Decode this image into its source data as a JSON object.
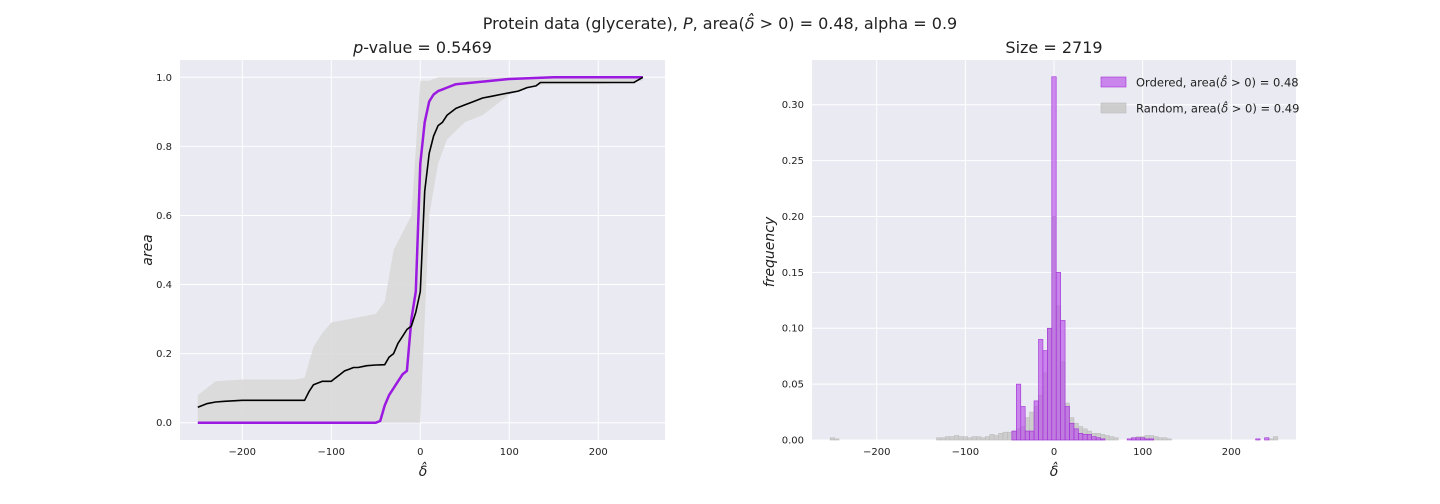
{
  "figure": {
    "suptitle": "Protein data (glycerate), P, area(δ̂ > 0) = 0.48, alpha = 0.9",
    "suptitle_parts": {
      "a": "Protein data (glycerate), ",
      "b": "P",
      "c": ", area(",
      "d": "δ̂",
      "e": " > 0) = 0.48, alpha = 0.9"
    }
  },
  "chart_data": [
    {
      "type": "line",
      "title": "p-value = 0.5469",
      "title_parts": {
        "italic": "p",
        "rest": "-value = 0.5469"
      },
      "xlabel": "δ̂",
      "ylabel": "area",
      "xlim": [
        -270,
        275
      ],
      "ylim": [
        -0.05,
        1.05
      ],
      "xticks": [
        -200,
        -100,
        0,
        100,
        200
      ],
      "xtick_labels": [
        "−200",
        "−100",
        "0",
        "100",
        "200"
      ],
      "yticks": [
        0.0,
        0.2,
        0.4,
        0.6,
        0.8,
        1.0
      ],
      "ytick_labels": [
        "0.0",
        "0.2",
        "0.4",
        "0.6",
        "0.8",
        "1.0"
      ],
      "grid": true,
      "colors": {
        "ordered": "#9b19e0",
        "mean": "#000000",
        "band": "#d9d9d9",
        "bg": "#eaeaf2",
        "grid": "#ffffff"
      },
      "series": [
        {
          "x": [
            -250,
            -50,
            -45,
            -40,
            -35,
            -30,
            -25,
            -20,
            -15,
            -10,
            -5,
            0,
            5,
            10,
            15,
            20,
            25,
            30,
            40,
            60,
            80,
            100,
            150,
            250
          ],
          "values": [
            0.0,
            0.0,
            0.005,
            0.05,
            0.08,
            0.1,
            0.12,
            0.14,
            0.15,
            0.3,
            0.38,
            0.75,
            0.87,
            0.93,
            0.95,
            0.96,
            0.965,
            0.97,
            0.98,
            0.985,
            0.99,
            0.995,
            1.0,
            1.0
          ]
        },
        {
          "x": [
            -250,
            -240,
            -230,
            -220,
            -200,
            -180,
            -160,
            -140,
            -135,
            -130,
            -125,
            -120,
            -110,
            -100,
            -95,
            -90,
            -85,
            -80,
            -75,
            -70,
            -60,
            -50,
            -40,
            -35,
            -30,
            -25,
            -20,
            -15,
            -10,
            -5,
            0,
            5,
            10,
            15,
            20,
            25,
            30,
            40,
            50,
            60,
            70,
            80,
            90,
            100,
            110,
            120,
            130,
            135,
            140,
            160,
            180,
            200,
            220,
            240,
            250
          ],
          "values": [
            0.045,
            0.055,
            0.06,
            0.062,
            0.065,
            0.065,
            0.065,
            0.065,
            0.065,
            0.065,
            0.09,
            0.11,
            0.12,
            0.12,
            0.13,
            0.14,
            0.15,
            0.155,
            0.16,
            0.16,
            0.165,
            0.167,
            0.168,
            0.19,
            0.2,
            0.23,
            0.25,
            0.27,
            0.28,
            0.32,
            0.38,
            0.67,
            0.78,
            0.83,
            0.86,
            0.87,
            0.89,
            0.91,
            0.92,
            0.93,
            0.94,
            0.945,
            0.95,
            0.955,
            0.96,
            0.97,
            0.975,
            0.985,
            0.985,
            0.985,
            0.985,
            0.985,
            0.985,
            0.985,
            1.0
          ]
        },
        {
          "x": [
            -250,
            -240,
            -230,
            -200,
            -160,
            -140,
            -130,
            -120,
            -110,
            -100,
            -80,
            -60,
            -50,
            -40,
            -30,
            -20,
            -10,
            0,
            10,
            20,
            30,
            50,
            70,
            100,
            120,
            140,
            200,
            250
          ],
          "lower": [
            0.0,
            0.0,
            0.0,
            0.0,
            0.0,
            0.0,
            0.0,
            0.0,
            0.0,
            0.0,
            0.0,
            0.0,
            0.0,
            0.0,
            0.0,
            0.0,
            0.0,
            0.0,
            0.6,
            0.75,
            0.82,
            0.87,
            0.89,
            0.95,
            0.97,
            0.98,
            0.98,
            0.99
          ],
          "upper": [
            0.08,
            0.1,
            0.12,
            0.125,
            0.125,
            0.125,
            0.13,
            0.22,
            0.26,
            0.29,
            0.3,
            0.31,
            0.315,
            0.35,
            0.5,
            0.55,
            0.6,
            0.99,
            0.99,
            1.0,
            1.0,
            1.0,
            1.0,
            1.0,
            1.0,
            1.0,
            1.0,
            1.0
          ]
        }
      ]
    },
    {
      "type": "bar",
      "title": "Size = 2719",
      "xlabel": "δ̂",
      "ylabel": "frequency",
      "xlim": [
        -273,
        273
      ],
      "ylim": [
        0,
        0.34
      ],
      "xticks": [
        -200,
        -100,
        0,
        100,
        200
      ],
      "xtick_labels": [
        "−200",
        "−100",
        "0",
        "100",
        "200"
      ],
      "yticks": [
        0.0,
        0.05,
        0.1,
        0.15,
        0.2,
        0.25,
        0.3
      ],
      "ytick_labels": [
        "0.00",
        "0.05",
        "0.10",
        "0.15",
        "0.20",
        "0.25",
        "0.30"
      ],
      "grid": true,
      "legend_position": "top-right",
      "bin_width": 5,
      "colors": {
        "ordered": "#b94ee8",
        "random": "#c8c8c8",
        "bg": "#eaeaf2",
        "grid": "#ffffff"
      },
      "series": [
        {
          "name": "Ordered, area(δ̂ > 0) = 0.48",
          "name_parts": {
            "a": "Ordered, area(",
            "b": "δ̂",
            "c": " > 0) = 0.48"
          },
          "x": [
            -45,
            -40,
            -35,
            -30,
            -25,
            -20,
            -15,
            -10,
            -5,
            0,
            5,
            10,
            15,
            20,
            25,
            30,
            35,
            40,
            45,
            50,
            55,
            85,
            90,
            95,
            100,
            105,
            110,
            230,
            240
          ],
          "values": [
            0.008,
            0.05,
            0.03,
            0.008,
            0.008,
            0.035,
            0.09,
            0.08,
            0.1,
            0.325,
            0.15,
            0.107,
            0.03,
            0.015,
            0.01,
            0.006,
            0.005,
            0.005,
            0.003,
            0.002,
            0.001,
            0.001,
            0.002,
            0.002,
            0.002,
            0.001,
            0.001,
            0.001,
            0.002
          ]
        },
        {
          "name": "Random, area(δ̂ > 0) = 0.49",
          "name_parts": {
            "a": "Random, area(",
            "b": "δ̂",
            "c": " > 0) = 0.49"
          },
          "x": [
            -250,
            -245,
            -130,
            -125,
            -120,
            -115,
            -110,
            -105,
            -100,
            -95,
            -90,
            -85,
            -80,
            -75,
            -70,
            -65,
            -60,
            -55,
            -50,
            -45,
            -40,
            -35,
            -30,
            -25,
            -20,
            -15,
            -10,
            -5,
            0,
            5,
            10,
            15,
            20,
            25,
            30,
            35,
            40,
            45,
            50,
            55,
            60,
            65,
            70,
            90,
            95,
            100,
            105,
            110,
            115,
            120,
            125,
            130,
            245,
            250
          ],
          "values": [
            0.002,
            0.001,
            0.002,
            0.002,
            0.003,
            0.003,
            0.004,
            0.003,
            0.003,
            0.002,
            0.003,
            0.003,
            0.002,
            0.003,
            0.005,
            0.004,
            0.006,
            0.007,
            0.007,
            0.008,
            0.01,
            0.012,
            0.02,
            0.025,
            0.03,
            0.04,
            0.06,
            0.1,
            0.2,
            0.12,
            0.07,
            0.033,
            0.02,
            0.015,
            0.012,
            0.01,
            0.008,
            0.006,
            0.006,
            0.005,
            0.004,
            0.003,
            0.002,
            0.002,
            0.003,
            0.003,
            0.004,
            0.004,
            0.003,
            0.002,
            0.002,
            0.001,
            0.001,
            0.003
          ]
        }
      ]
    }
  ]
}
